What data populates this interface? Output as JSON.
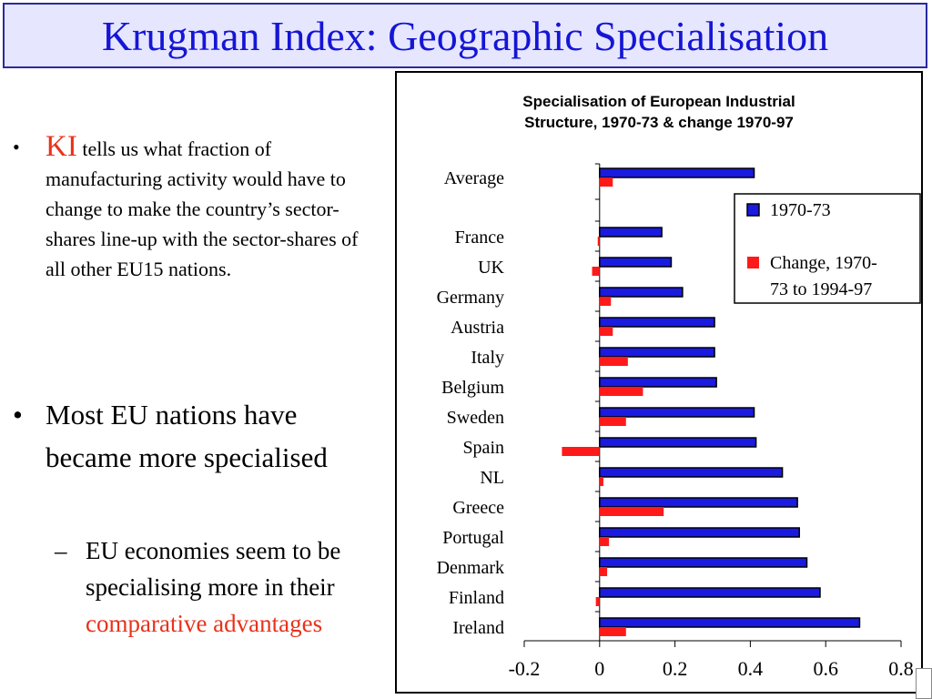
{
  "slide": {
    "title": "Krugman Index: Geographic Specialisation",
    "bullet1": {
      "marker": "•",
      "lead": "KI",
      "text": " tells us what fraction of manufacturing activity would have to change to make the country’s sector-shares line-up with the sector-shares of all other EU15 nations."
    },
    "bullet2": {
      "marker": "•",
      "text": "Most EU nations have became more specialised"
    },
    "bullet3": {
      "marker": "–",
      "text": "EU economies seem to be specialising more in their ",
      "highlight": "comparative advantages"
    },
    "colors": {
      "title": "#1515d6",
      "title_bg": "#e6e6ff",
      "accent_red": "#e8321b"
    }
  },
  "chart_data": {
    "type": "bar",
    "orientation": "horizontal",
    "title_lines": [
      "Specialisation of European Industrial",
      "Structure, 1970-73 & change 1970-97"
    ],
    "categories": [
      "Average",
      "France",
      "UK",
      "Germany",
      "Austria",
      "Italy",
      "Belgium",
      "Sweden",
      "Spain",
      "NL",
      "Greece",
      "Portugal",
      "Denmark",
      "Finland",
      "Ireland"
    ],
    "series": [
      {
        "name": "1970-73",
        "color": "#1a1ae0",
        "values": [
          0.41,
          0.165,
          0.19,
          0.22,
          0.305,
          0.305,
          0.31,
          0.41,
          0.415,
          0.485,
          0.525,
          0.53,
          0.55,
          0.585,
          0.69
        ]
      },
      {
        "name": "Change, 1970-73 to 1994-97",
        "color": "#ff1a1a",
        "values": [
          0.035,
          -0.005,
          -0.02,
          0.03,
          0.035,
          0.075,
          0.115,
          0.07,
          -0.1,
          0.01,
          0.17,
          0.025,
          0.02,
          -0.01,
          0.07
        ]
      }
    ],
    "xlim": [
      -0.2,
      0.8
    ],
    "xticks": [
      -0.2,
      0,
      0.2,
      0.4,
      0.6,
      0.8
    ],
    "xtick_labels": [
      "-0.2",
      "0",
      "0.2",
      "0.4",
      "0.6",
      "0.8"
    ],
    "legend": {
      "position": "top-right",
      "labels": [
        "1970-73",
        "Change, 1970-",
        "73 to 1994-97"
      ]
    },
    "grid": false
  }
}
